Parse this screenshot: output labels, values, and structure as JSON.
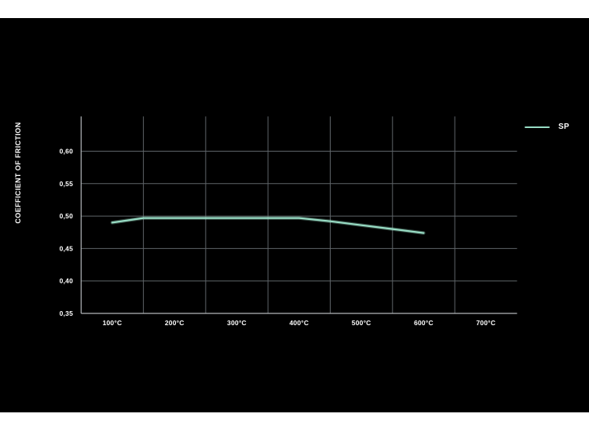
{
  "page": {
    "background": "#ffffff",
    "canvas_background": "#000000"
  },
  "chart_data": {
    "type": "line",
    "title": "",
    "xlabel": "",
    "ylabel": "COEFFICIENT OF FRICTION",
    "xlim": [
      50,
      750
    ],
    "ylim": [
      0.35,
      0.6535
    ],
    "grid": {
      "vertical_boundary_values": [
        150,
        250,
        350,
        450,
        550,
        650
      ],
      "horizontal_values": [
        0.4,
        0.45,
        0.5,
        0.55,
        0.6
      ]
    },
    "x_ticks": [
      {
        "value": 100,
        "label": "100°C"
      },
      {
        "value": 200,
        "label": "200°C"
      },
      {
        "value": 300,
        "label": "300°C"
      },
      {
        "value": 400,
        "label": "400°C"
      },
      {
        "value": 500,
        "label": "500°C"
      },
      {
        "value": 600,
        "label": "600°C"
      },
      {
        "value": 700,
        "label": "700°C"
      }
    ],
    "y_ticks": [
      {
        "value": 0.35,
        "label": "0,35"
      },
      {
        "value": 0.4,
        "label": "0,40"
      },
      {
        "value": 0.45,
        "label": "0,45"
      },
      {
        "value": 0.5,
        "label": "0,50"
      },
      {
        "value": 0.55,
        "label": "0,55"
      },
      {
        "value": 0.6,
        "label": "0,60"
      }
    ],
    "legend": {
      "position": "top-right",
      "entries": [
        {
          "label": "SP",
          "color": "#98DCC4"
        }
      ]
    },
    "series": [
      {
        "name": "SP",
        "color": "#98DCC4",
        "points": [
          [
            100,
            0.49
          ],
          [
            150,
            0.497
          ],
          [
            200,
            0.497
          ],
          [
            250,
            0.497
          ],
          [
            300,
            0.497
          ],
          [
            350,
            0.497
          ],
          [
            400,
            0.497
          ],
          [
            450,
            0.492
          ],
          [
            500,
            0.486
          ],
          [
            550,
            0.48
          ],
          [
            600,
            0.474
          ]
        ]
      }
    ],
    "colors": {
      "gridline": "#5f6569",
      "axis": "#b2b7ba",
      "tick_label": "#ffffff"
    }
  }
}
